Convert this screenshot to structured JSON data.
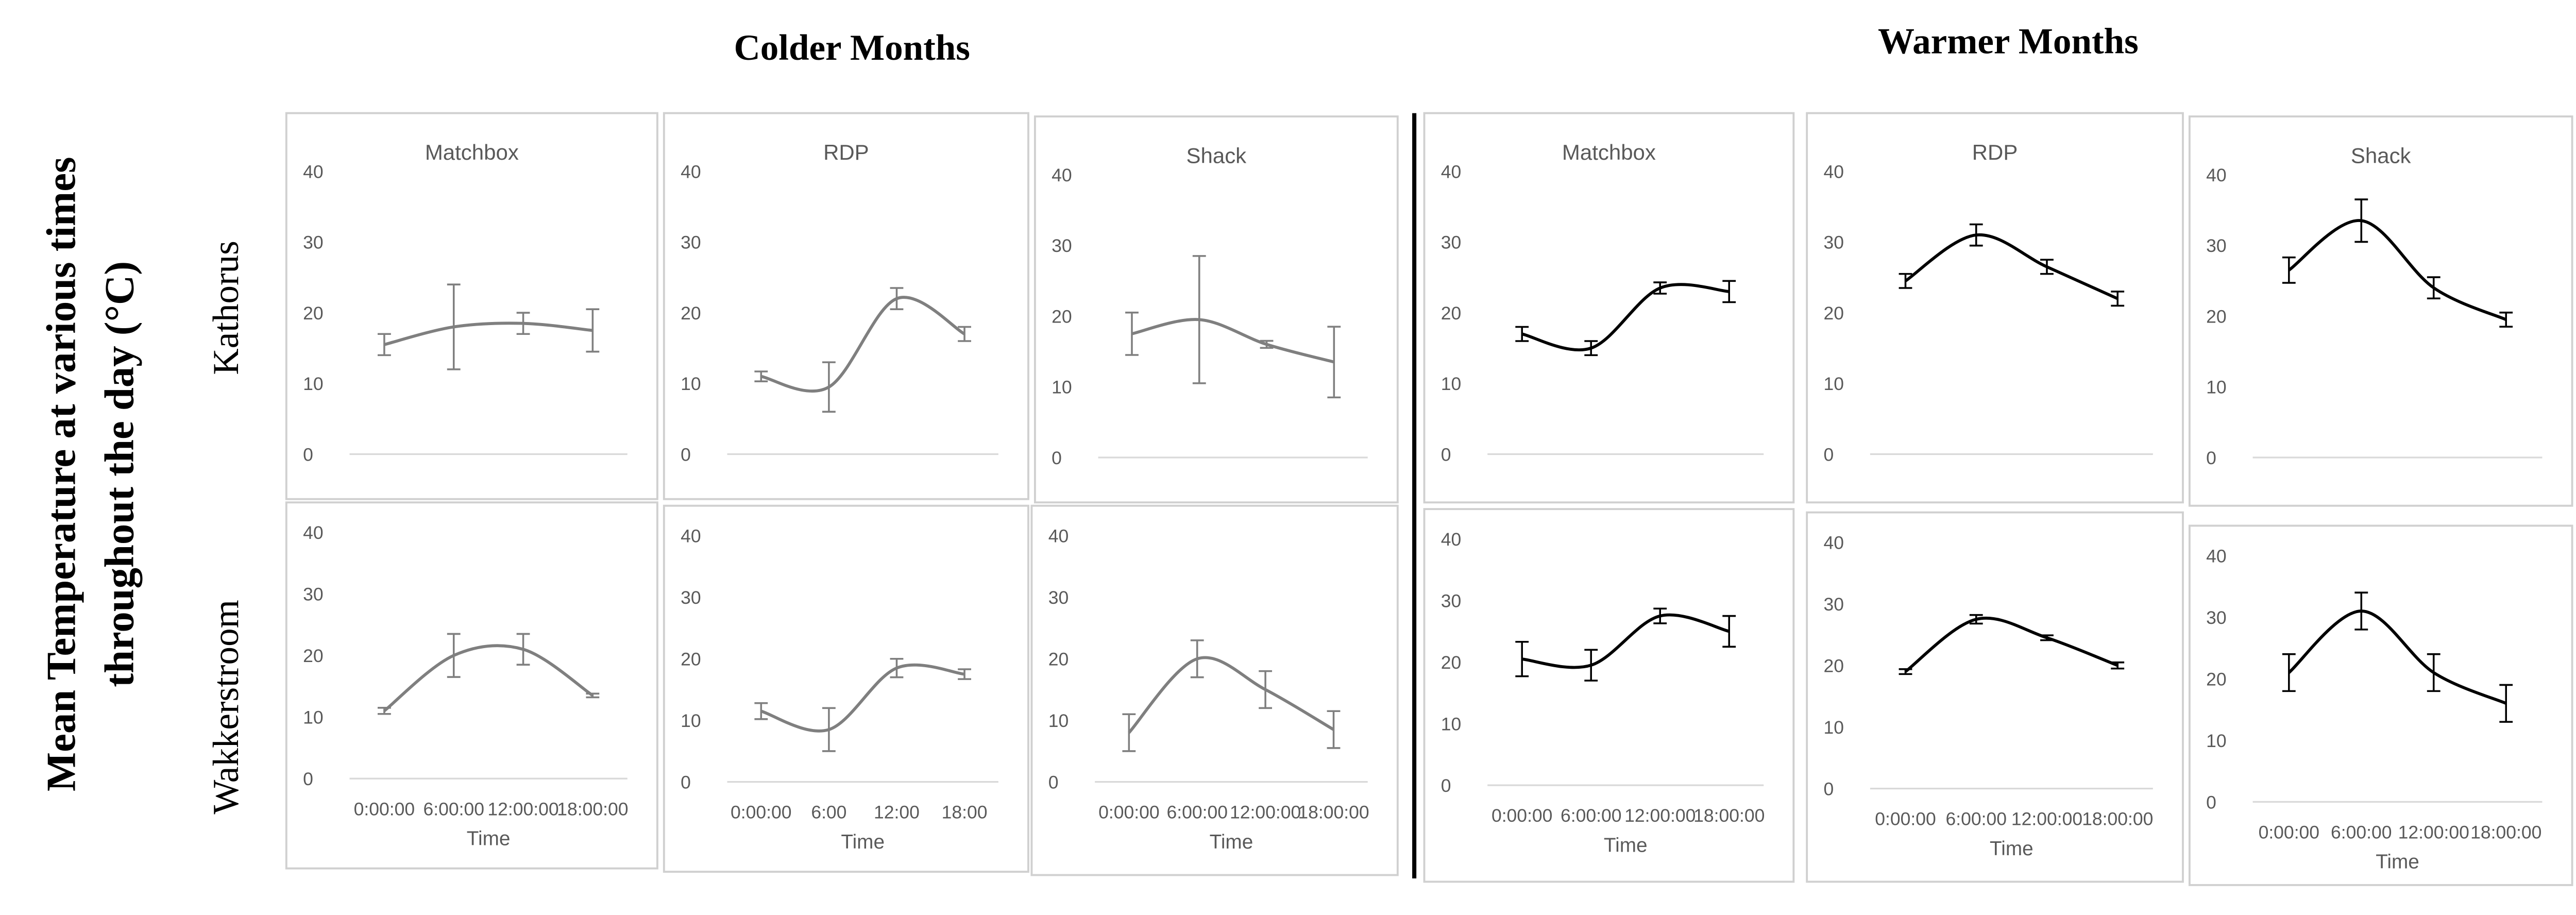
{
  "figure": {
    "column_groups": [
      "Colder Months",
      "Warmer Months"
    ],
    "row_labels": [
      "Kathorus",
      "Wakkerstroom"
    ],
    "ylabel_lines": [
      "Mean Temperature at various times",
      "throughout the day (°C)"
    ]
  },
  "chart_data": [
    {
      "type": "line",
      "title": "Matchbox",
      "categories": [
        null,
        null,
        null,
        null
      ],
      "ylim": [
        0,
        40
      ],
      "yticks": [
        0,
        10,
        20,
        30,
        40
      ],
      "series": [
        {
          "color": "#7f7f7f",
          "values": [
            15.5,
            18,
            18.5,
            17.5
          ],
          "errors": [
            1.5,
            6,
            1.5,
            3
          ]
        }
      ]
    },
    {
      "type": "line",
      "title": "RDP",
      "categories": [
        null,
        null,
        null,
        null
      ],
      "ylim": [
        0,
        40
      ],
      "yticks": [
        0,
        10,
        20,
        30,
        40
      ],
      "series": [
        {
          "color": "#7f7f7f",
          "values": [
            11,
            9.5,
            22,
            17
          ],
          "errors": [
            0.7,
            3.5,
            1.5,
            1
          ]
        }
      ]
    },
    {
      "type": "line",
      "title": "Shack",
      "categories": [
        null,
        null,
        null,
        null
      ],
      "ylim": [
        0,
        40
      ],
      "yticks": [
        0,
        10,
        20,
        30,
        40
      ],
      "series": [
        {
          "color": "#7f7f7f",
          "values": [
            17.5,
            19.5,
            16,
            13.5
          ],
          "errors": [
            3,
            9,
            0.5,
            5
          ]
        }
      ]
    },
    {
      "type": "line",
      "title": "Matchbox",
      "categories": [
        null,
        null,
        null,
        null
      ],
      "ylim": [
        0,
        40
      ],
      "yticks": [
        0,
        10,
        20,
        30,
        40
      ],
      "series": [
        {
          "color": "#000000",
          "values": [
            17,
            15,
            23.5,
            23
          ],
          "errors": [
            1,
            1,
            0.8,
            1.5
          ]
        }
      ]
    },
    {
      "type": "line",
      "title": "RDP",
      "categories": [
        null,
        null,
        null,
        null
      ],
      "ylim": [
        0,
        40
      ],
      "yticks": [
        0,
        10,
        20,
        30,
        40
      ],
      "series": [
        {
          "color": "#000000",
          "values": [
            24.5,
            31,
            26.5,
            22
          ],
          "errors": [
            1,
            1.5,
            1,
            1
          ]
        }
      ]
    },
    {
      "type": "line",
      "title": "Shack",
      "categories": [
        null,
        null,
        null,
        null
      ],
      "ylim": [
        0,
        40
      ],
      "yticks": [
        0,
        10,
        20,
        30,
        40
      ],
      "series": [
        {
          "color": "#000000",
          "values": [
            26.5,
            33.5,
            24,
            19.5
          ],
          "errors": [
            1.8,
            3,
            1.5,
            1
          ]
        }
      ]
    },
    {
      "type": "line",
      "categories": [
        "0:00:00",
        "6:00:00",
        "12:00:00",
        "18:00:00"
      ],
      "xlabel": "Time",
      "ylim": [
        0,
        40
      ],
      "yticks": [
        0,
        10,
        20,
        30,
        40
      ],
      "series": [
        {
          "color": "#7f7f7f",
          "values": [
            11,
            20,
            21,
            13.5
          ],
          "errors": [
            0.5,
            3.5,
            2.5,
            0.3
          ]
        }
      ]
    },
    {
      "type": "line",
      "categories": [
        "0:00:00",
        "6:00",
        "12:00",
        "18:00"
      ],
      "xlabel": "Time",
      "ylim": [
        0,
        40
      ],
      "yticks": [
        0,
        10,
        20,
        30,
        40
      ],
      "series": [
        {
          "color": "#7f7f7f",
          "values": [
            11.5,
            8.5,
            18.5,
            17.5
          ],
          "errors": [
            1.3,
            3.5,
            1.5,
            0.8
          ]
        }
      ]
    },
    {
      "type": "line",
      "categories": [
        "0:00:00",
        "6:00:00",
        "12:00:00",
        "18:00:00"
      ],
      "xlabel": "Time",
      "ylim": [
        0,
        40
      ],
      "yticks": [
        0,
        10,
        20,
        30,
        40
      ],
      "series": [
        {
          "color": "#7f7f7f",
          "values": [
            8,
            20,
            15,
            8.5
          ],
          "errors": [
            3,
            3,
            3,
            3
          ]
        }
      ]
    },
    {
      "type": "line",
      "categories": [
        "0:00:00",
        "6:00:00",
        "12:00:00",
        "18:00:00"
      ],
      "xlabel": "Time",
      "ylim": [
        0,
        40
      ],
      "yticks": [
        0,
        10,
        20,
        30,
        40
      ],
      "series": [
        {
          "color": "#000000",
          "values": [
            20.5,
            19.5,
            27.5,
            25
          ],
          "errors": [
            2.8,
            2.5,
            1.2,
            2.5
          ]
        }
      ]
    },
    {
      "type": "line",
      "categories": [
        "0:00:00",
        "6:00:00",
        "12:00:00",
        "18:00:00"
      ],
      "xlabel": "Time",
      "ylim": [
        0,
        40
      ],
      "yticks": [
        0,
        10,
        20,
        30,
        40
      ],
      "series": [
        {
          "color": "#000000",
          "values": [
            19,
            27.5,
            24.5,
            20
          ],
          "errors": [
            0.4,
            0.7,
            0.4,
            0.5
          ]
        }
      ]
    },
    {
      "type": "line",
      "categories": [
        "0:00:00",
        "6:00:00",
        "12:00:00",
        "18:00:00"
      ],
      "xlabel": "Time",
      "ylim": [
        0,
        40
      ],
      "yticks": [
        0,
        10,
        20,
        30,
        40
      ],
      "series": [
        {
          "color": "#000000",
          "values": [
            21,
            31,
            21,
            16
          ],
          "errors": [
            3,
            3,
            3,
            3
          ]
        }
      ]
    }
  ]
}
